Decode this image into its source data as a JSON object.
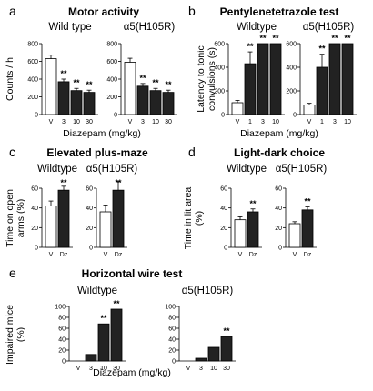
{
  "chart_data": [
    {
      "panel": "a",
      "title": "Motor activity",
      "type": "bar",
      "ylabel": "Counts / h",
      "xlabel": "Diazepam (mg/kg)",
      "ylim": [
        0,
        800
      ],
      "yticks": [
        "0",
        "200",
        "400",
        "600",
        "800"
      ],
      "groups": [
        {
          "name": "Wild type",
          "categories": [
            "V",
            "3",
            "10",
            "30"
          ],
          "values": [
            630,
            370,
            270,
            250
          ],
          "errors": [
            40,
            30,
            25,
            25
          ],
          "fills": [
            "#ffffff",
            "#222222",
            "#222222",
            "#222222"
          ],
          "significance": [
            "",
            "**",
            "**",
            "**"
          ]
        },
        {
          "name": "α5(H105R)",
          "categories": [
            "V",
            "3",
            "10",
            "30"
          ],
          "values": [
            590,
            320,
            270,
            250
          ],
          "errors": [
            45,
            30,
            25,
            25
          ],
          "fills": [
            "#ffffff",
            "#222222",
            "#222222",
            "#222222"
          ],
          "significance": [
            "",
            "**",
            "**",
            "**"
          ]
        }
      ]
    },
    {
      "panel": "b",
      "title": "Pentylenetetrazole test",
      "type": "bar",
      "ylabel": "Latency to tonic convulsions (s)",
      "xlabel": "Diazepam (mg/kg)",
      "ylim": [
        0,
        600
      ],
      "yticks": [
        "0",
        "200",
        "400",
        "600"
      ],
      "groups": [
        {
          "name": "Wildtype",
          "categories": [
            "V",
            "1",
            "3",
            "10"
          ],
          "values": [
            100,
            430,
            600,
            600
          ],
          "errors": [
            20,
            100,
            0,
            0
          ],
          "fills": [
            "#ffffff",
            "#222222",
            "#222222",
            "#222222"
          ],
          "significance": [
            "",
            "**",
            "**",
            "**"
          ]
        },
        {
          "name": "α5(H105R)",
          "categories": [
            "V",
            "1",
            "3",
            "10"
          ],
          "values": [
            80,
            400,
            600,
            600
          ],
          "errors": [
            15,
            110,
            0,
            0
          ],
          "fills": [
            "#ffffff",
            "#222222",
            "#222222",
            "#222222"
          ],
          "significance": [
            "",
            "**",
            "**",
            "**"
          ]
        }
      ]
    },
    {
      "panel": "c",
      "title": "Elevated plus-maze",
      "type": "bar",
      "ylabel": "Time on open arms (%)",
      "xlabel": "",
      "ylim": [
        0,
        60
      ],
      "yticks": [
        "0",
        "20",
        "40",
        "60"
      ],
      "groups": [
        {
          "name": "Wildtype",
          "categories": [
            "V",
            "Dz"
          ],
          "values": [
            42,
            58
          ],
          "errors": [
            5,
            4
          ],
          "fills": [
            "#ffffff",
            "#222222"
          ],
          "significance": [
            "",
            "**"
          ]
        },
        {
          "name": "α5(H105R)",
          "categories": [
            "V",
            "Dz"
          ],
          "values": [
            36,
            58
          ],
          "errors": [
            7,
            9
          ],
          "fills": [
            "#ffffff",
            "#222222"
          ],
          "significance": [
            "",
            "**"
          ]
        }
      ]
    },
    {
      "panel": "d",
      "title": "Light-dark choice",
      "type": "bar",
      "ylabel": "Time in lit area (%)",
      "xlabel": "",
      "ylim": [
        0,
        60
      ],
      "yticks": [
        "0",
        "20",
        "40",
        "60"
      ],
      "groups": [
        {
          "name": "Wildtype",
          "categories": [
            "V",
            "Dz"
          ],
          "values": [
            28,
            36
          ],
          "errors": [
            3,
            3
          ],
          "fills": [
            "#ffffff",
            "#222222"
          ],
          "significance": [
            "",
            "**"
          ]
        },
        {
          "name": "α5(H105R)",
          "categories": [
            "V",
            "Dz"
          ],
          "values": [
            24,
            38
          ],
          "errors": [
            2,
            3
          ],
          "fills": [
            "#ffffff",
            "#222222"
          ],
          "significance": [
            "",
            "**"
          ]
        }
      ]
    },
    {
      "panel": "e",
      "title": "Horizontal wire test",
      "type": "bar",
      "ylabel": "Impaired mice (%)",
      "xlabel": "Diazepam (mg/kg)",
      "ylim": [
        0,
        100
      ],
      "yticks": [
        "0",
        "20",
        "40",
        "60",
        "80",
        "100"
      ],
      "groups": [
        {
          "name": "Wildtype",
          "categories": [
            "V",
            "3",
            "10",
            "30"
          ],
          "values": [
            0,
            12,
            68,
            95
          ],
          "errors": [
            0,
            0,
            0,
            0
          ],
          "fills": [
            "#ffffff",
            "#222222",
            "#222222",
            "#222222"
          ],
          "significance": [
            "",
            "",
            "**",
            "**"
          ]
        },
        {
          "name": "α5(H105R)",
          "categories": [
            "V",
            "3",
            "10",
            "30"
          ],
          "values": [
            0,
            5,
            25,
            45
          ],
          "errors": [
            0,
            0,
            0,
            0
          ],
          "fills": [
            "#ffffff",
            "#222222",
            "#222222",
            "#222222"
          ],
          "significance": [
            "",
            "",
            "",
            "**"
          ]
        }
      ]
    }
  ]
}
